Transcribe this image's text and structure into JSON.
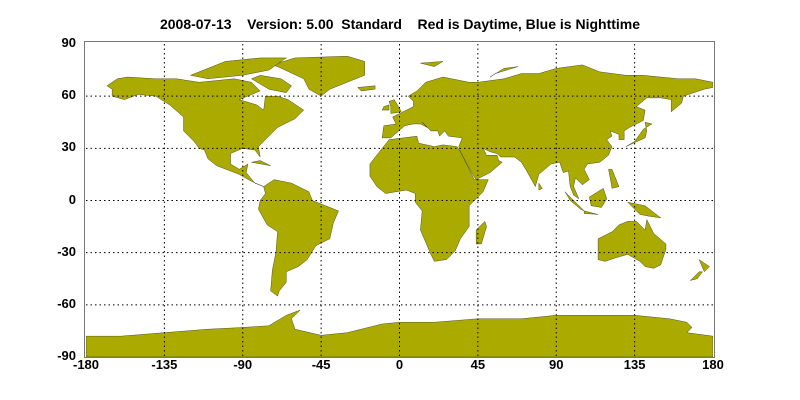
{
  "title": "2008-07-13    Version: 5.00  Standard    Red is Daytime, Blue is Nighttime",
  "map": {
    "projection": "equirectangular",
    "lon_range": [
      -180,
      180
    ],
    "lat_range": [
      -90,
      90
    ],
    "grid": "dotted",
    "land_color": "#aaaa00",
    "coastline_color": "#000000",
    "x_ticks": [
      "-180",
      "-135",
      "-90",
      "-45",
      "0",
      "45",
      "90",
      "135",
      "180"
    ],
    "y_ticks": [
      "90",
      "60",
      "30",
      "0",
      "-30",
      "-60",
      "-90"
    ]
  }
}
